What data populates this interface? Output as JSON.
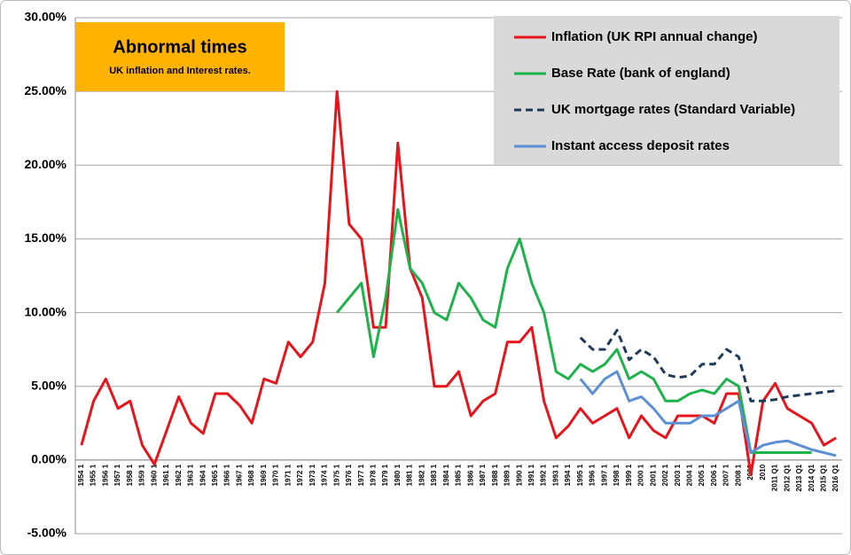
{
  "chart_data": {
    "type": "line",
    "title": "Abnormal times",
    "subtitle": "UK inflation and Interest rates.",
    "categories": [
      "1954 1",
      "1955 1",
      "1956 1",
      "1957 1",
      "1958 1",
      "1959 1",
      "1960 1",
      "1961 1",
      "1962 1",
      "1963 1",
      "1964 1",
      "1965 1",
      "1966 1",
      "1967 1",
      "1968 1",
      "1969 1",
      "1970 1",
      "1971 1",
      "1972 1",
      "1973 1",
      "1974 1",
      "1975 1",
      "1976 1",
      "1977 1",
      "1978 1",
      "1979 1",
      "1980 1",
      "1981 1",
      "1982 1",
      "1983 1",
      "1984 1",
      "1985 1",
      "1986 1",
      "1987 1",
      "1988 1",
      "1989 1",
      "1990 1",
      "1991 1",
      "1992 1",
      "1993 1",
      "1994 1",
      "1995 1",
      "1996 1",
      "1997 1",
      "1998 1",
      "1999 1",
      "2000 1",
      "2001 1",
      "2002 1",
      "2003 1",
      "2004 1",
      "2005 1",
      "2006 1",
      "2007 1",
      "2008 1",
      "2009",
      "2010",
      "2011 Q1",
      "2012 Q1",
      "2013 Q1",
      "2014 Q1",
      "2015 Q1",
      "2016 Q1"
    ],
    "series": [
      {
        "name": "Inflation (UK RPI annual change)",
        "color": "#e8141b",
        "values": [
          1,
          4,
          5.5,
          3.5,
          4,
          1,
          -0.3,
          2,
          4.3,
          2.5,
          1.8,
          4.5,
          4.5,
          3.7,
          2.5,
          5.5,
          5.2,
          8,
          7,
          8,
          12,
          25,
          16,
          15,
          9,
          9,
          21.5,
          13,
          11,
          5,
          5,
          6,
          3,
          4,
          4.5,
          8,
          8,
          9,
          4,
          1.5,
          2.3,
          3.5,
          2.5,
          3,
          3.5,
          1.5,
          3,
          2,
          1.5,
          3,
          3,
          3,
          2.5,
          4.5,
          4.5,
          -1,
          4,
          5.2,
          3.5,
          3,
          2.5,
          1,
          1.5
        ]
      },
      {
        "name": "Base Rate (bank of england)",
        "color": "#1db34b",
        "values": [
          null,
          null,
          null,
          null,
          null,
          null,
          null,
          null,
          null,
          null,
          null,
          null,
          null,
          null,
          null,
          null,
          null,
          null,
          null,
          null,
          null,
          10,
          11,
          12,
          7,
          11,
          17,
          13,
          12,
          10,
          9.5,
          12,
          11,
          9.5,
          9,
          13,
          15,
          12,
          10,
          6,
          5.5,
          6.5,
          6,
          6.5,
          7.5,
          5.5,
          6,
          5.5,
          4,
          4,
          4.5,
          4.75,
          4.5,
          5.5,
          5,
          0.5,
          0.5,
          0.5,
          0.5,
          0.5,
          0.5,
          null,
          null
        ]
      },
      {
        "name": "UK mortgage rates (Standard Variable)",
        "color": "#1f3a5a",
        "dash": true,
        "values": [
          null,
          null,
          null,
          null,
          null,
          null,
          null,
          null,
          null,
          null,
          null,
          null,
          null,
          null,
          null,
          null,
          null,
          null,
          null,
          null,
          null,
          null,
          null,
          null,
          null,
          null,
          null,
          null,
          null,
          null,
          null,
          null,
          null,
          null,
          null,
          null,
          null,
          null,
          null,
          null,
          null,
          8.3,
          7.5,
          7.5,
          8.8,
          6.8,
          7.5,
          7,
          5.8,
          5.6,
          5.7,
          6.5,
          6.5,
          7.5,
          7,
          4,
          4,
          4.1,
          4.3,
          4.4,
          4.5,
          4.6,
          4.7
        ]
      },
      {
        "name": "Instant access deposit rates",
        "color": "#5b8fd6",
        "values": [
          null,
          null,
          null,
          null,
          null,
          null,
          null,
          null,
          null,
          null,
          null,
          null,
          null,
          null,
          null,
          null,
          null,
          null,
          null,
          null,
          null,
          null,
          null,
          null,
          null,
          null,
          null,
          null,
          null,
          null,
          null,
          null,
          null,
          null,
          null,
          null,
          null,
          null,
          null,
          null,
          null,
          5.5,
          4.5,
          5.5,
          6,
          4,
          4.3,
          3.5,
          2.5,
          2.5,
          2.5,
          3,
          3,
          3.5,
          4,
          0.5,
          1,
          1.2,
          1.3,
          1,
          0.7,
          0.5,
          0.3
        ]
      }
    ],
    "ylim": [
      -5,
      30
    ],
    "yticks": [
      {
        "value": -5,
        "label": "-5.00%"
      },
      {
        "value": 0,
        "label": "0.00%"
      },
      {
        "value": 5,
        "label": "5.00%"
      },
      {
        "value": 10,
        "label": "10.00%"
      },
      {
        "value": 15,
        "label": "15.00%"
      },
      {
        "value": 20,
        "label": "20.00%"
      },
      {
        "value": 25,
        "label": "25.00%"
      },
      {
        "value": 30,
        "label": "30.00%"
      }
    ],
    "grid": true,
    "legend": "top-right"
  }
}
